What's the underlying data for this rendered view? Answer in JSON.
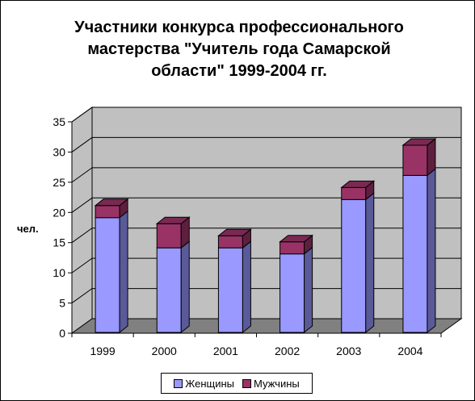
{
  "chart_data": {
    "type": "bar",
    "stacked": true,
    "three_d": true,
    "title_lines": [
      "Участники конкурса профессионального",
      "мастерства \"Учитель года Самарской",
      "области\" 1999-2004 гг."
    ],
    "ylabel": "чел.",
    "xlabel": "",
    "ylim": [
      0,
      35
    ],
    "yticks": [
      "0",
      "5",
      "10",
      "15",
      "20",
      "25",
      "30",
      "35"
    ],
    "categories": [
      "1999",
      "2000",
      "2001",
      "2002",
      "2003",
      "2004"
    ],
    "series": [
      {
        "name": "Женщины",
        "values": [
          19,
          14,
          14,
          13,
          22,
          26
        ],
        "color": "#9999ff",
        "side_color": "#5a5a99",
        "top_color": "#b3b3ff"
      },
      {
        "name": "Мужчины",
        "values": [
          2,
          4,
          2,
          2,
          2,
          5
        ],
        "color": "#993366",
        "side_color": "#5e1f3e",
        "top_color": "#7a2952"
      }
    ],
    "grid": true,
    "legend_position": "bottom",
    "wall_color": "#c0c0c0",
    "floor_color": "#808080"
  }
}
